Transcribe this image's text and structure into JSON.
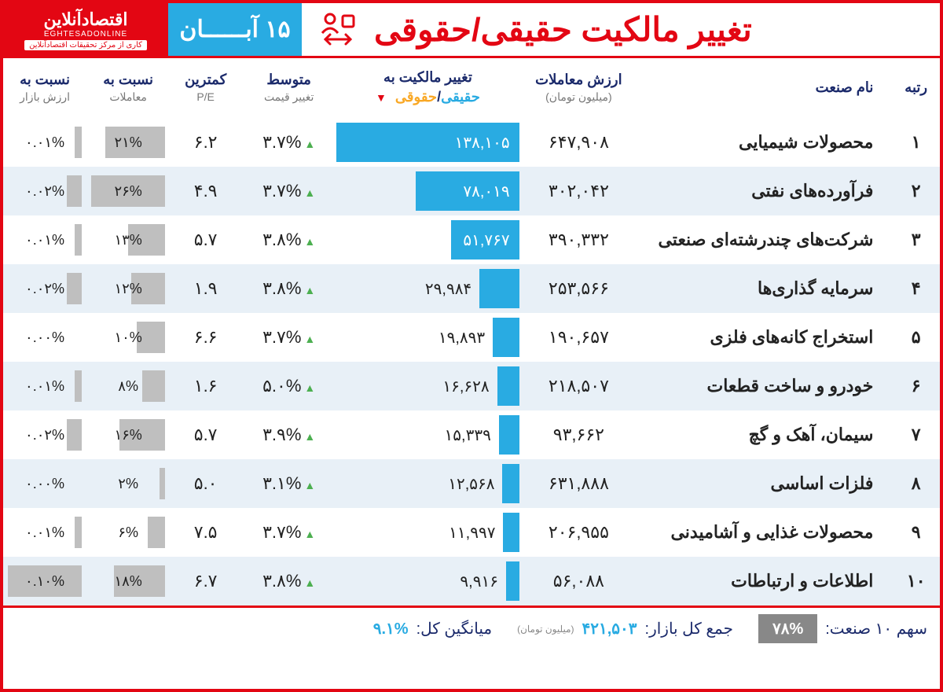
{
  "header": {
    "logo_main": "اقتصادآنلاین",
    "logo_sub": "EGHTESADONLINE",
    "logo_tag": "کاری از مرکز تحقیقات اقتصادآنلاین",
    "date": "۱۵ آبــــــان",
    "title": "تغییر مالکیت حقیقی/حقوقی",
    "title_icon": "ownership-icon"
  },
  "colors": {
    "primary_red": "#e30613",
    "accent_blue": "#29abe2",
    "header_navy": "#1b2a6b",
    "row_even": "#e8f0f7",
    "row_odd": "#ffffff",
    "bar_gray": "#bfbfbf",
    "up_green": "#4caf50",
    "legend_orange": "#f9a825"
  },
  "columns": {
    "rank": "رتبه",
    "name": "نام صنعت",
    "trade_val": "ارزش معاملات",
    "trade_val_sub": "(میلیون تومان)",
    "ownership": "تغییر مالکیت به",
    "legend_haq": "حقیقی",
    "legend_sep": "/",
    "legend_hoq": "حقوقی",
    "avg_change": "متوسط",
    "avg_change_sub": "تغییر قیمت",
    "pe": "کمترین",
    "pe_sub": "P/E",
    "ratio_trade": "نسبت به",
    "ratio_trade_sub": "معاملات",
    "ratio_market": "نسبت به",
    "ratio_market_sub": "ارزش بازار"
  },
  "bar_max": 138105,
  "ratio_trade_max": 26,
  "ratio_market_max": 0.1,
  "rows": [
    {
      "rank": "۱",
      "name": "محصولات شیمیایی",
      "trade_val": "۶۴۷,۹۰۸",
      "own_val": 138105,
      "own_label": "۱۳۸,۱۰۵",
      "label_inside": true,
      "avg": "۳.۷%",
      "pe": "۶.۲",
      "r_trade": 21,
      "r_trade_label": "۲۱%",
      "r_market": 0.01,
      "r_market_label": "۰.۰۱%"
    },
    {
      "rank": "۲",
      "name": "فرآورده‌های نفتی",
      "trade_val": "۳۰۲,۰۴۲",
      "own_val": 78019,
      "own_label": "۷۸,۰۱۹",
      "label_inside": true,
      "avg": "۳.۷%",
      "pe": "۴.۹",
      "r_trade": 26,
      "r_trade_label": "۲۶%",
      "r_market": 0.02,
      "r_market_label": "۰.۰۲%"
    },
    {
      "rank": "۳",
      "name": "شرکت‌های چندرشته‌ای صنعتی",
      "trade_val": "۳۹۰,۳۳۲",
      "own_val": 51767,
      "own_label": "۵۱,۷۶۷",
      "label_inside": true,
      "avg": "۳.۸%",
      "pe": "۵.۷",
      "r_trade": 13,
      "r_trade_label": "۱۳%",
      "r_market": 0.01,
      "r_market_label": "۰.۰۱%"
    },
    {
      "rank": "۴",
      "name": "سرمایه گذاری‌ها",
      "trade_val": "۲۵۳,۵۶۶",
      "own_val": 29984,
      "own_label": "۲۹,۹۸۴",
      "label_inside": false,
      "avg": "۳.۸%",
      "pe": "۱.۹",
      "r_trade": 12,
      "r_trade_label": "۱۲%",
      "r_market": 0.02,
      "r_market_label": "۰.۰۲%"
    },
    {
      "rank": "۵",
      "name": "استخراج کانه‌های فلزی",
      "trade_val": "۱۹۰,۶۵۷",
      "own_val": 19893,
      "own_label": "۱۹,۸۹۳",
      "label_inside": false,
      "avg": "۳.۷%",
      "pe": "۶.۶",
      "r_trade": 10,
      "r_trade_label": "۱۰%",
      "r_market": 0.0,
      "r_market_label": "۰.۰۰%"
    },
    {
      "rank": "۶",
      "name": "خودرو و ساخت قطعات",
      "trade_val": "۲۱۸,۵۰۷",
      "own_val": 16628,
      "own_label": "۱۶,۶۲۸",
      "label_inside": false,
      "avg": "۵.۰%",
      "pe": "۱.۶",
      "r_trade": 8,
      "r_trade_label": "۸%",
      "r_market": 0.01,
      "r_market_label": "۰.۰۱%"
    },
    {
      "rank": "۷",
      "name": "سیمان، آهک و گچ",
      "trade_val": "۹۳,۶۶۲",
      "own_val": 15339,
      "own_label": "۱۵,۳۳۹",
      "label_inside": false,
      "avg": "۳.۹%",
      "pe": "۵.۷",
      "r_trade": 16,
      "r_trade_label": "۱۶%",
      "r_market": 0.02,
      "r_market_label": "۰.۰۲%"
    },
    {
      "rank": "۸",
      "name": "فلزات اساسی",
      "trade_val": "۶۳۱,۸۸۸",
      "own_val": 12568,
      "own_label": "۱۲,۵۶۸",
      "label_inside": false,
      "avg": "۳.۱%",
      "pe": "۵.۰",
      "r_trade": 2,
      "r_trade_label": "۲%",
      "r_market": 0.0,
      "r_market_label": "۰.۰۰%"
    },
    {
      "rank": "۹",
      "name": "محصولات غذایی و آشامیدنی",
      "trade_val": "۲۰۶,۹۵۵",
      "own_val": 11997,
      "own_label": "۱۱,۹۹۷",
      "label_inside": false,
      "avg": "۳.۷%",
      "pe": "۷.۵",
      "r_trade": 6,
      "r_trade_label": "۶%",
      "r_market": 0.01,
      "r_market_label": "۰.۰۱%"
    },
    {
      "rank": "۱۰",
      "name": "اطلاعات و ارتباطات",
      "trade_val": "۵۶,۰۸۸",
      "own_val": 9916,
      "own_label": "۹,۹۱۶",
      "label_inside": false,
      "avg": "۳.۸%",
      "pe": "۶.۷",
      "r_trade": 18,
      "r_trade_label": "۱۸%",
      "r_market": 0.1,
      "r_market_label": "۰.۱۰%"
    }
  ],
  "footer": {
    "share_label": "سهم ۱۰ صنعت:",
    "share_val": "۷۸%",
    "sum_label": "جمع کل بازار:",
    "sum_val": "۴۲۱,۵۰۳",
    "sum_unit": "(میلیون تومان)",
    "avg_label": "میانگین کل:",
    "avg_val": "۹.۱%"
  }
}
